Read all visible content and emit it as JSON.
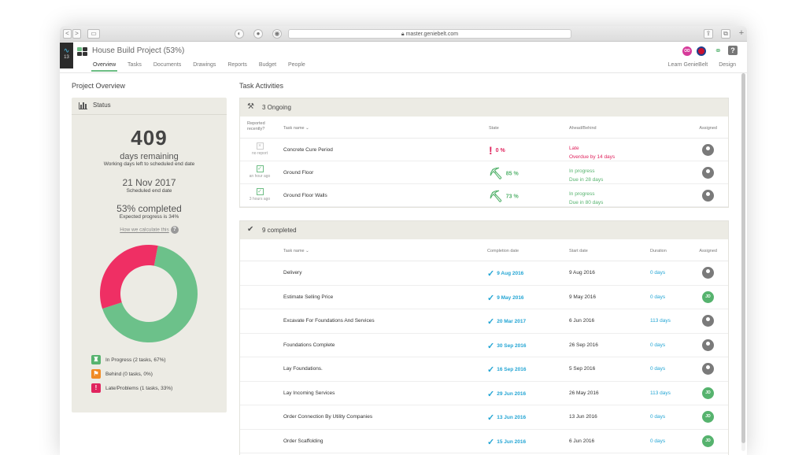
{
  "browser": {
    "url": "master.geniebelt.com",
    "ctrl_back": "<",
    "ctrl_fwd": ">"
  },
  "app": {
    "pulse_count": "13",
    "title": "House Build Project (53%)",
    "user_initials": "OD",
    "help": "?",
    "nav": [
      "Overview",
      "Tasks",
      "Documents",
      "Drawings",
      "Reports",
      "Budget",
      "People"
    ],
    "nav_right": [
      "Learn GenieBelt",
      "Design"
    ]
  },
  "overview": {
    "heading": "Project Overview",
    "status_title": "Status",
    "days": "409",
    "days_label": "days remaining",
    "days_note": "Working days left to scheduled end date",
    "end_date": "21 Nov 2017",
    "end_label": "Scheduled end date",
    "completed": "53% completed",
    "expected": "Expected progress is 34%",
    "how": "How we calculate this",
    "how_icon": "?",
    "legend": [
      {
        "label": "In Progress (2 tasks, 67%)",
        "color": "#56b36e",
        "glyph": "♜"
      },
      {
        "label": "Behind (0 tasks, 0%)",
        "color": "#f08a24",
        "glyph": "⚑"
      },
      {
        "label": "Late/Problems (1 tasks, 33%)",
        "color": "#e0245e",
        "glyph": "!"
      }
    ]
  },
  "chart_data": {
    "type": "pie",
    "donut": true,
    "categories": [
      "In Progress",
      "Late/Problems",
      "Behind"
    ],
    "values": [
      67,
      33,
      0
    ],
    "colors": [
      "#6cc18a",
      "#ef2f64",
      "#f08a24"
    ]
  },
  "activities": {
    "heading": "Task Activities",
    "ongoing": {
      "title": "3 Ongoing",
      "cols": {
        "reported": "Reported recently?",
        "task": "Task name ⌄",
        "state": "State",
        "ahead": "Ahead/Behind",
        "assigned": "Assigned"
      },
      "rows": [
        {
          "report": "no report",
          "task": "Concrete Cure Period",
          "state": "0 %",
          "s1": "Late",
          "s2": "Overdue by 14 days",
          "kind": "late"
        },
        {
          "report": "an hour ago",
          "task": "Ground Floor",
          "state": "85 %",
          "s1": "In progress",
          "s2": "Due in 28 days",
          "kind": "ok"
        },
        {
          "report": "3 hours ago",
          "task": "Ground Floor Walls",
          "state": "73 %",
          "s1": "In progress",
          "s2": "Due in 80 days",
          "kind": "ok"
        }
      ]
    },
    "completed": {
      "title": "9 completed",
      "cols": {
        "task": "Task name ⌄",
        "completion": "Completion date",
        "start": "Start date",
        "duration": "Duration",
        "assigned": "Assigned"
      },
      "rows": [
        {
          "task": "Delivery",
          "done": "9 Aug 2016",
          "start": "9 Aug 2016",
          "dur": "0 days",
          "who": ""
        },
        {
          "task": "Estimate Selling Price",
          "done": "9 May 2016",
          "start": "9 May 2016",
          "dur": "0 days",
          "who": "JD"
        },
        {
          "task": "Excavate For Foundations And Services",
          "done": "20 Mar 2017",
          "start": "6 Jun 2016",
          "dur": "113 days",
          "who": ""
        },
        {
          "task": "Foundations Complete",
          "done": "30 Sep 2016",
          "start": "26 Sep 2016",
          "dur": "0 days",
          "who": ""
        },
        {
          "task": "Lay Foundations.",
          "done": "16 Sep 2016",
          "start": "5 Sep 2016",
          "dur": "0 days",
          "who": ""
        },
        {
          "task": "Lay Incoming Services",
          "done": "29 Jun 2016",
          "start": "26 May 2016",
          "dur": "113 days",
          "who": "JD"
        },
        {
          "task": "Order Connection By Utility Companies",
          "done": "13 Jun 2016",
          "start": "13 Jun 2016",
          "dur": "0 days",
          "who": "JD"
        },
        {
          "task": "Order Scaffolding",
          "done": "15 Jun 2016",
          "start": "6 Jun 2016",
          "dur": "0 days",
          "who": "JD"
        }
      ]
    }
  }
}
